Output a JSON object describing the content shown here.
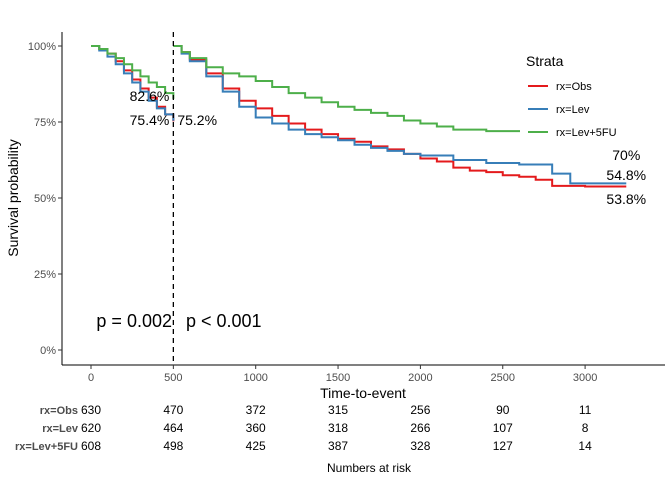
{
  "chart_data": {
    "type": "line",
    "subtype": "kaplan-meier-landmark",
    "xlabel": "Time-to-event",
    "ylabel": "Survival probability",
    "xlim": [
      -150,
      3450
    ],
    "ylim": [
      -0.05,
      1.05
    ],
    "xticks": [
      0,
      500,
      1000,
      1500,
      2000,
      2500,
      3000
    ],
    "yticks": [
      {
        "v": 0,
        "l": "0%"
      },
      {
        "v": 0.25,
        "l": "25%"
      },
      {
        "v": 0.5,
        "l": "50%"
      },
      {
        "v": 0.75,
        "l": "75%"
      },
      {
        "v": 1,
        "l": "100%"
      }
    ],
    "landmark": 500,
    "legend": {
      "title": "Strata",
      "placement": "top-right"
    },
    "series": [
      {
        "name": "rx=Obs",
        "color": "#E41A1C",
        "seg1": [
          [
            0,
            1
          ],
          [
            50,
            0.99
          ],
          [
            100,
            0.975
          ],
          [
            150,
            0.95
          ],
          [
            200,
            0.92
          ],
          [
            250,
            0.89
          ],
          [
            300,
            0.86
          ],
          [
            350,
            0.83
          ],
          [
            400,
            0.8
          ],
          [
            450,
            0.775
          ],
          [
            500,
            0.752
          ]
        ],
        "seg2": [
          [
            500,
            1
          ],
          [
            550,
            0.98
          ],
          [
            600,
            0.955
          ],
          [
            700,
            0.91
          ],
          [
            800,
            0.86
          ],
          [
            900,
            0.82
          ],
          [
            1000,
            0.795
          ],
          [
            1100,
            0.77
          ],
          [
            1200,
            0.745
          ],
          [
            1300,
            0.725
          ],
          [
            1400,
            0.71
          ],
          [
            1500,
            0.695
          ],
          [
            1600,
            0.685
          ],
          [
            1700,
            0.67
          ],
          [
            1800,
            0.66
          ],
          [
            1900,
            0.645
          ],
          [
            2000,
            0.63
          ],
          [
            2100,
            0.62
          ],
          [
            2200,
            0.6
          ],
          [
            2300,
            0.59
          ],
          [
            2400,
            0.585
          ],
          [
            2500,
            0.575
          ],
          [
            2600,
            0.57
          ],
          [
            2700,
            0.56
          ],
          [
            2800,
            0.54
          ],
          [
            3000,
            0.538
          ],
          [
            3250,
            0.538
          ]
        ]
      },
      {
        "name": "rx=Lev",
        "color": "#377EB8",
        "seg1": [
          [
            0,
            1
          ],
          [
            50,
            0.985
          ],
          [
            100,
            0.965
          ],
          [
            150,
            0.94
          ],
          [
            200,
            0.91
          ],
          [
            250,
            0.88
          ],
          [
            300,
            0.85
          ],
          [
            350,
            0.82
          ],
          [
            400,
            0.795
          ],
          [
            450,
            0.775
          ],
          [
            500,
            0.754
          ]
        ],
        "seg2": [
          [
            500,
            1
          ],
          [
            550,
            0.975
          ],
          [
            600,
            0.95
          ],
          [
            700,
            0.9
          ],
          [
            800,
            0.85
          ],
          [
            900,
            0.8
          ],
          [
            1000,
            0.765
          ],
          [
            1100,
            0.745
          ],
          [
            1200,
            0.725
          ],
          [
            1300,
            0.71
          ],
          [
            1400,
            0.7
          ],
          [
            1500,
            0.69
          ],
          [
            1600,
            0.675
          ],
          [
            1700,
            0.665
          ],
          [
            1800,
            0.655
          ],
          [
            1900,
            0.645
          ],
          [
            2000,
            0.64
          ],
          [
            2200,
            0.625
          ],
          [
            2400,
            0.615
          ],
          [
            2600,
            0.61
          ],
          [
            2800,
            0.58
          ],
          [
            2910,
            0.548
          ],
          [
            3250,
            0.548
          ]
        ]
      },
      {
        "name": "rx=Lev+5FU",
        "color": "#4DAF4A",
        "seg1": [
          [
            0,
            1
          ],
          [
            50,
            0.99
          ],
          [
            100,
            0.975
          ],
          [
            150,
            0.96
          ],
          [
            200,
            0.94
          ],
          [
            250,
            0.92
          ],
          [
            300,
            0.9
          ],
          [
            350,
            0.88
          ],
          [
            400,
            0.865
          ],
          [
            450,
            0.845
          ],
          [
            500,
            0.826
          ]
        ],
        "seg2": [
          [
            500,
            1
          ],
          [
            550,
            0.98
          ],
          [
            600,
            0.96
          ],
          [
            700,
            0.93
          ],
          [
            800,
            0.91
          ],
          [
            900,
            0.9
          ],
          [
            1000,
            0.885
          ],
          [
            1100,
            0.865
          ],
          [
            1200,
            0.845
          ],
          [
            1300,
            0.83
          ],
          [
            1400,
            0.815
          ],
          [
            1500,
            0.8
          ],
          [
            1600,
            0.79
          ],
          [
            1700,
            0.78
          ],
          [
            1800,
            0.77
          ],
          [
            1900,
            0.755
          ],
          [
            2000,
            0.745
          ],
          [
            2100,
            0.735
          ],
          [
            2200,
            0.725
          ],
          [
            2400,
            0.72
          ],
          [
            2620,
            0.705
          ]
        ]
      }
    ],
    "annotations": [
      {
        "text": "82.6%",
        "x": 500,
        "y": 0.826
      },
      {
        "text": "75.4%",
        "x": 500,
        "y": 0.754
      },
      {
        "text": "75.2%",
        "x": 500,
        "y": 0.752
      },
      {
        "text": "70%",
        "x": 3250,
        "y": 0.7
      },
      {
        "text": "53.8%",
        "x": 3250,
        "y": 0.538
      },
      {
        "text": "54.8%",
        "x": 3250,
        "y": 0.548
      },
      {
        "text": "p = 0.002",
        "x": 300,
        "y": 0.095
      },
      {
        "text": "p < 0.001",
        "x": 800,
        "y": 0.095
      }
    ],
    "risk_table": {
      "title": "Numbers at risk",
      "times": [
        0,
        500,
        1000,
        1500,
        2000,
        2500,
        3000
      ],
      "rows": [
        {
          "label": "rx=Obs",
          "values": [
            630,
            470,
            372,
            315,
            256,
            90,
            11
          ]
        },
        {
          "label": "rx=Lev",
          "values": [
            620,
            464,
            360,
            318,
            266,
            107,
            8
          ]
        },
        {
          "label": "rx=Lev+5FU",
          "values": [
            608,
            498,
            425,
            387,
            328,
            127,
            14
          ]
        }
      ]
    }
  }
}
